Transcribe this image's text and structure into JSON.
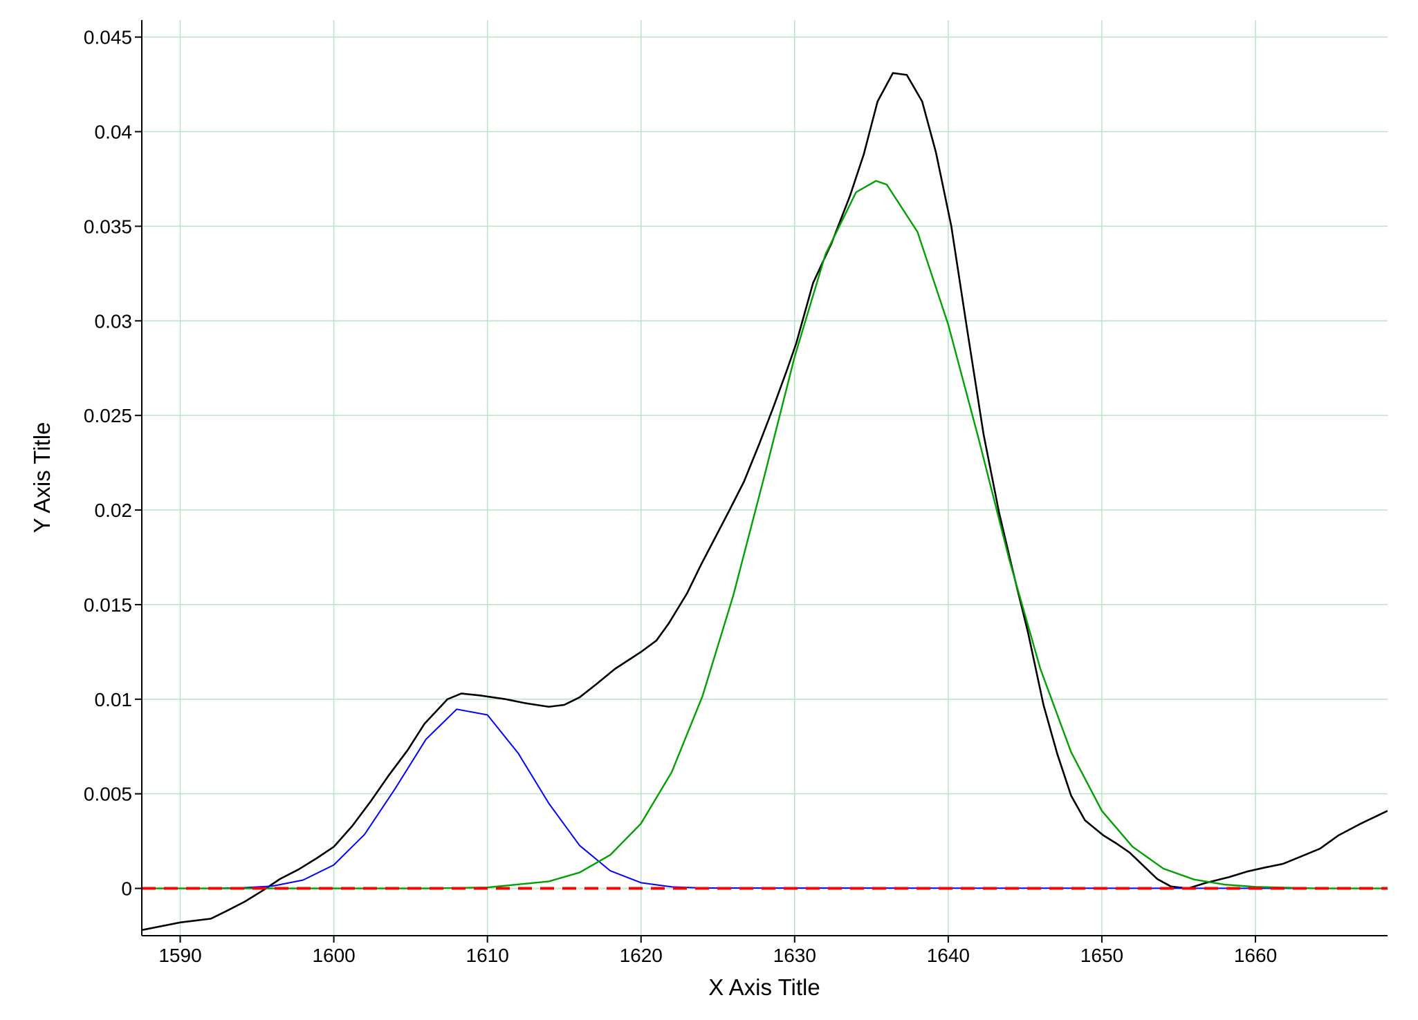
{
  "chart_data": {
    "type": "line",
    "x_label": "X Axis Title",
    "y_label": "Y Axis Title",
    "xlim": [
      1587.5,
      1668.6
    ],
    "ylim": [
      -0.0025,
      0.0459
    ],
    "xticks": [
      1590,
      1600,
      1610,
      1620,
      1630,
      1640,
      1650,
      1660
    ],
    "yticks": [
      0,
      0.005,
      0.01,
      0.015,
      0.02,
      0.025,
      0.03,
      0.035,
      0.04,
      0.045
    ],
    "grid": true,
    "grid_color": "#b9e3c9",
    "series": [
      {
        "color": "#000000",
        "width": 2.6,
        "x": [
          1587.5,
          1590,
          1592,
          1593,
          1594.2,
          1595.4,
          1596.5,
          1597.7,
          1598.9,
          1600,
          1601.2,
          1602.4,
          1603.6,
          1604.8,
          1605.9,
          1607.4,
          1608.3,
          1609.5,
          1611.2,
          1612.4,
          1614,
          1615,
          1616,
          1617.1,
          1618.3,
          1620,
          1621,
          1621.8,
          1623,
          1623.9,
          1624.8,
          1625.7,
          1626.7,
          1627.7,
          1628.6,
          1629.5,
          1630.1,
          1631.2,
          1632.4,
          1633.6,
          1634.5,
          1635.4,
          1636.4,
          1637.3,
          1638.3,
          1639.2,
          1640.2,
          1641.2,
          1642.3,
          1643.3,
          1644.2,
          1645.2,
          1646.2,
          1647.1,
          1648,
          1648.9,
          1650.1,
          1650.9,
          1651.8,
          1652.7,
          1653.6,
          1654.5,
          1655.6,
          1656.8,
          1658.3,
          1659.5,
          1660.6,
          1661.8,
          1663,
          1664.2,
          1665.4,
          1666.8,
          1668.6
        ],
        "values": [
          -0.0022,
          -0.0018,
          -0.0016,
          -0.0012,
          -0.0007,
          -0.0001,
          0.0005,
          0.001,
          0.0016,
          0.0022,
          0.0033,
          0.0046,
          0.006,
          0.0073,
          0.0087,
          0.01,
          0.0103,
          0.0102,
          0.01,
          0.0098,
          0.0096,
          0.0097,
          0.0101,
          0.0108,
          0.0116,
          0.0125,
          0.0131,
          0.014,
          0.0156,
          0.0171,
          0.0185,
          0.0199,
          0.0215,
          0.0235,
          0.0254,
          0.0274,
          0.0288,
          0.032,
          0.0341,
          0.0366,
          0.0388,
          0.0416,
          0.0431,
          0.043,
          0.0416,
          0.0389,
          0.035,
          0.0297,
          0.024,
          0.0199,
          0.0168,
          0.0135,
          0.0097,
          0.0071,
          0.0049,
          0.0036,
          0.0028,
          0.0024,
          0.0019,
          0.0012,
          0.0005,
          0.0001,
          0,
          0.0003,
          0.0006,
          0.0009,
          0.0011,
          0.0013,
          0.0017,
          0.0021,
          0.0028,
          0.0034,
          0.0041
        ]
      },
      {
        "color": "#0000ff",
        "width": 2,
        "x": [
          1587.5,
          1592,
          1594,
          1596,
          1598,
          1600,
          1602,
          1604,
          1606,
          1608,
          1610,
          1612,
          1614,
          1616,
          1618,
          1620,
          1622,
          1624,
          1668.6
        ],
        "values": [
          0,
          0,
          3e-05,
          0.00012,
          0.00044,
          0.00124,
          0.00285,
          0.00528,
          0.00788,
          0.00947,
          0.00917,
          0.00715,
          0.00449,
          0.00227,
          0.00093,
          0.0003,
          8e-05,
          2e-05,
          0
        ]
      },
      {
        "color": "#00a000",
        "width": 2.4,
        "x": [
          1587.5,
          1606,
          1610,
          1614,
          1616,
          1618,
          1620,
          1622,
          1624,
          1626,
          1628,
          1630,
          1632,
          1634,
          1635.3,
          1636,
          1638,
          1640,
          1642,
          1644,
          1646,
          1648,
          1650,
          1652,
          1654,
          1656,
          1658,
          1660,
          1664,
          1668.6
        ],
        "values": [
          0,
          0,
          5e-05,
          0.00037,
          0.00084,
          0.00177,
          0.00343,
          0.00615,
          0.01016,
          0.01547,
          0.0217,
          0.0281,
          0.0335,
          0.0368,
          0.0374,
          0.0372,
          0.0347,
          0.0298,
          0.0237,
          0.0173,
          0.0116,
          0.0072,
          0.0041,
          0.0022,
          0.00105,
          0.00047,
          0.0002,
          8e-05,
          0,
          0
        ]
      },
      {
        "color": "#ff0000",
        "width": 4,
        "dash": "20 12",
        "x": [
          1587.5,
          1668.6
        ],
        "values": [
          0,
          0
        ]
      }
    ]
  }
}
